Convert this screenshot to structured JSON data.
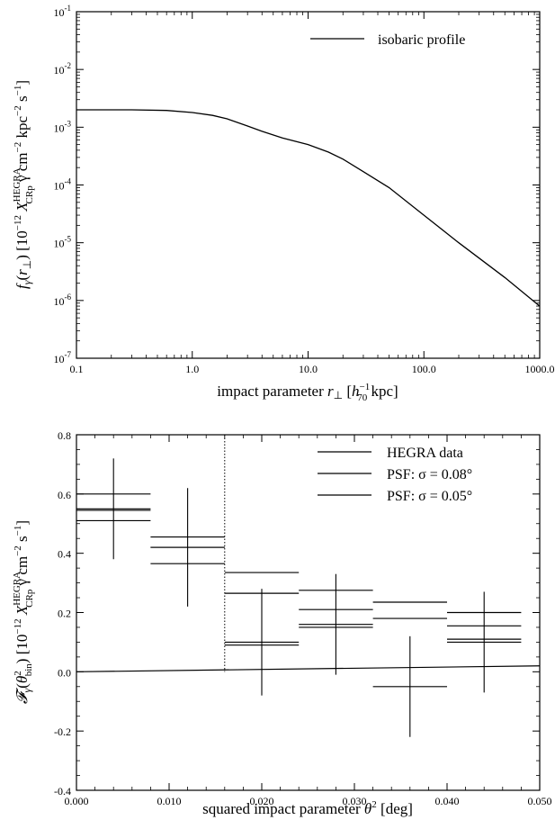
{
  "chart_data": [
    {
      "type": "line",
      "xscale": "log",
      "yscale": "log",
      "xlim": [
        0.1,
        1000
      ],
      "ylim": [
        1e-07,
        0.1
      ],
      "x_ticks": [
        {
          "value": 0.1,
          "label": "0.1"
        },
        {
          "value": 1,
          "label": "1.0"
        },
        {
          "value": 10,
          "label": "10.0"
        },
        {
          "value": 100,
          "label": "100.0"
        },
        {
          "value": 1000,
          "label": "1000.0"
        }
      ],
      "y_ticks": [
        {
          "value": 1e-07,
          "mant": "10",
          "exp": "-7"
        },
        {
          "value": 1e-06,
          "mant": "10",
          "exp": "-6"
        },
        {
          "value": 1e-05,
          "mant": "10",
          "exp": "-5"
        },
        {
          "value": 0.0001,
          "mant": "10",
          "exp": "-4"
        },
        {
          "value": 0.001,
          "mant": "10",
          "exp": "-3"
        },
        {
          "value": 0.01,
          "mant": "10",
          "exp": "-2"
        },
        {
          "value": 0.1,
          "mant": "10",
          "exp": "-1"
        }
      ],
      "xlabel": "impact parameter r⊥ [h70⁻¹ kpc]",
      "ylabel": "fγ(r⊥) [10⁻¹² X_CRp^HEGRA γ cm⁻² kpc⁻² s⁻¹]",
      "legend": {
        "position": "top-right",
        "entries": [
          "isobaric profile"
        ]
      },
      "series": [
        {
          "name": "isobaric profile",
          "x": [
            0.1,
            0.3,
            0.6,
            1.0,
            1.5,
            2.0,
            3.0,
            4.0,
            6.0,
            10.0,
            15.0,
            20.0,
            30.0,
            50.0,
            100.0,
            200.0,
            500.0,
            1000.0
          ],
          "y": [
            0.002,
            0.002,
            0.00195,
            0.0018,
            0.0016,
            0.0014,
            0.00105,
            0.00085,
            0.00065,
            0.0005,
            0.00037,
            0.00028,
            0.00017,
            9e-05,
            3e-05,
            1e-05,
            2.5e-06,
            8e-07
          ]
        }
      ]
    },
    {
      "type": "scatter",
      "xlim": [
        0.0,
        0.05
      ],
      "ylim": [
        -0.4,
        0.8
      ],
      "x_ticks": [
        {
          "value": 0.0,
          "label": "0.000"
        },
        {
          "value": 0.01,
          "label": "0.010"
        },
        {
          "value": 0.02,
          "label": "0.020"
        },
        {
          "value": 0.03,
          "label": "0.030"
        },
        {
          "value": 0.04,
          "label": "0.040"
        },
        {
          "value": 0.05,
          "label": "0.050"
        }
      ],
      "y_ticks": [
        {
          "value": -0.4,
          "label": "-0.4"
        },
        {
          "value": -0.2,
          "label": "-0.2"
        },
        {
          "value": 0.0,
          "label": "0.0"
        },
        {
          "value": 0.2,
          "label": "0.2"
        },
        {
          "value": 0.4,
          "label": "0.4"
        },
        {
          "value": 0.6,
          "label": "0.6"
        },
        {
          "value": 0.8,
          "label": "0.8"
        }
      ],
      "xlabel": "squared impact parameter θ² [deg]",
      "ylabel": "𝓕γ(θ²bin) [10⁻¹² X_CRp^HEGRA γ cm⁻² s⁻¹]",
      "legend": {
        "position": "top-right",
        "entries": [
          {
            "label": "HEGRA data"
          },
          {
            "label": "PSF: σ = 0.08°"
          },
          {
            "label": "PSF: σ = 0.05°"
          }
        ]
      },
      "vline_x": 0.016,
      "hegra_data": [
        {
          "x": 0.004,
          "y": 0.55,
          "yerr": 0.17
        },
        {
          "x": 0.012,
          "y": 0.42,
          "yerr": 0.2
        },
        {
          "x": 0.02,
          "y": 0.1,
          "yerr": 0.18
        },
        {
          "x": 0.028,
          "y": 0.16,
          "yerr": 0.17
        },
        {
          "x": 0.036,
          "y": -0.05,
          "yerr": 0.17
        },
        {
          "x": 0.044,
          "y": 0.1,
          "yerr": 0.17
        }
      ],
      "psf_008": [
        {
          "x0": 0.0,
          "x1": 0.008,
          "y": 0.545
        },
        {
          "x0": 0.008,
          "x1": 0.016,
          "y": 0.42
        },
        {
          "x0": 0.016,
          "x1": 0.024,
          "y": 0.265
        },
        {
          "x0": 0.024,
          "x1": 0.032,
          "y": 0.21
        },
        {
          "x0": 0.032,
          "x1": 0.04,
          "y": 0.18
        },
        {
          "x0": 0.04,
          "x1": 0.048,
          "y": 0.155
        }
      ],
      "psf_005": [
        {
          "x0": 0.0,
          "x1": 0.008,
          "y": 0.6
        },
        {
          "x0": 0.0,
          "x1": 0.008,
          "y": 0.51
        },
        {
          "x0": 0.008,
          "x1": 0.016,
          "y": 0.455
        },
        {
          "x0": 0.008,
          "x1": 0.016,
          "y": 0.365
        },
        {
          "x0": 0.016,
          "x1": 0.024,
          "y": 0.335
        },
        {
          "x0": 0.016,
          "x1": 0.024,
          "y": 0.09
        },
        {
          "x0": 0.024,
          "x1": 0.032,
          "y": 0.275
        },
        {
          "x0": 0.024,
          "x1": 0.032,
          "y": 0.15
        },
        {
          "x0": 0.032,
          "x1": 0.04,
          "y": 0.235
        },
        {
          "x0": 0.04,
          "x1": 0.048,
          "y": 0.2
        },
        {
          "x0": 0.04,
          "x1": 0.048,
          "y": 0.11
        }
      ],
      "baseline": {
        "x": [
          0.0,
          0.05
        ],
        "y": [
          0.0,
          0.02
        ]
      }
    }
  ]
}
